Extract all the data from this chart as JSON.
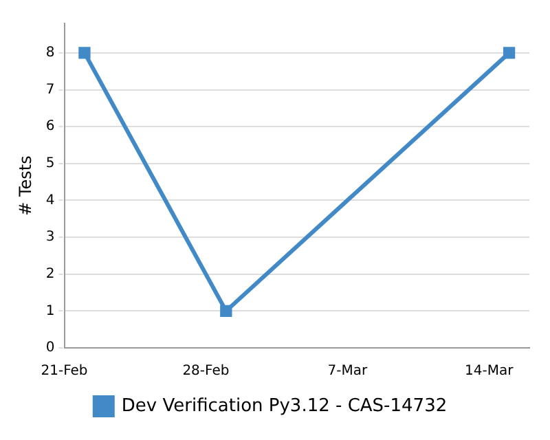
{
  "chart_data": {
    "type": "line",
    "ylabel": "# Tests",
    "xlim": [
      "--02-21",
      "--03-16"
    ],
    "xticks": [
      {
        "value": "--02-21",
        "label": "21-Feb"
      },
      {
        "value": "--02-28",
        "label": "28-Feb"
      },
      {
        "value": "--03-07",
        "label": "7-Mar"
      },
      {
        "value": "--03-14",
        "label": "14-Mar"
      }
    ],
    "ylim": [
      0,
      8.8
    ],
    "yticks": [
      0,
      1,
      2,
      3,
      4,
      5,
      6,
      7,
      8
    ],
    "x": [
      "--02-22",
      "--03-01",
      "--03-15"
    ],
    "series": [
      {
        "name": "Dev Verification Py3.12 - CAS-14732",
        "color": "#4189c7",
        "values": [
          8,
          1,
          8
        ]
      }
    ],
    "grid": "y",
    "legend": "bottom",
    "marker": "square",
    "line_style": "solid"
  }
}
